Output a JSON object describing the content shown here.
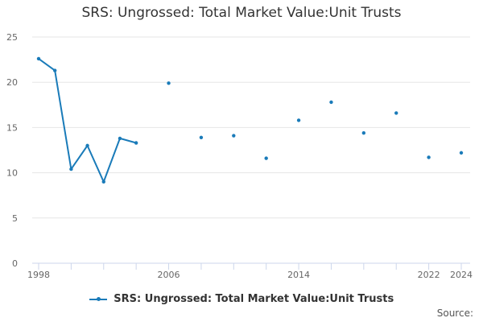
{
  "chart_data": {
    "type": "line",
    "title": "SRS: Ungrossed: Total Market Value:Unit Trusts",
    "xlabel": "",
    "ylabel": "",
    "ylim": [
      0,
      25
    ],
    "yticks": [
      0,
      5,
      10,
      15,
      20,
      25
    ],
    "xlim": [
      1998,
      2024
    ],
    "xtick_labels": [
      "1998",
      "2006",
      "2014",
      "2022",
      "2024"
    ],
    "grid": true,
    "legend_position": "bottom",
    "series": [
      {
        "name": "SRS: Ungrossed: Total Market Value:Unit Trusts",
        "color": "#1a7bb9",
        "x": [
          1998,
          1999,
          2000,
          2001,
          2002,
          2003,
          2004,
          2006,
          2008,
          2010,
          2012,
          2014,
          2016,
          2018,
          2020,
          2022,
          2024
        ],
        "values": [
          22.6,
          21.3,
          10.4,
          13.0,
          9.0,
          13.8,
          13.3,
          19.9,
          13.9,
          14.1,
          11.6,
          15.8,
          17.8,
          14.4,
          16.6,
          11.7,
          12.2
        ]
      }
    ]
  },
  "legend": {
    "label": "SRS: Ungrossed: Total Market Value:Unit Trusts"
  },
  "source": {
    "label": "Source:"
  }
}
